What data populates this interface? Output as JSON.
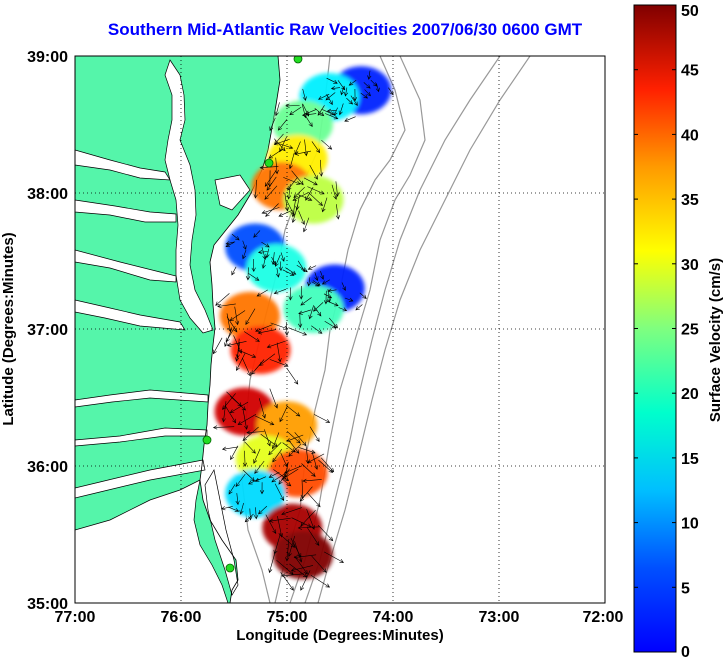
{
  "title": "Southern Mid-Atlantic Raw Velocities 2007/06/30 0600 GMT",
  "x_axis": {
    "label": "Longitude (Degrees:Minutes)",
    "ticks": [
      "77:00",
      "76:00",
      "75:00",
      "74:00",
      "73:00",
      "72:00"
    ]
  },
  "y_axis": {
    "label": "Latitude (Degrees:Minutes)",
    "ticks": [
      "39:00",
      "38:00",
      "37:00",
      "36:00",
      "35:00"
    ]
  },
  "colorbar": {
    "label": "Surface Velocity (cm/s)",
    "ticks": [
      "50",
      "45",
      "40",
      "35",
      "30",
      "25",
      "20",
      "15",
      "10",
      "5",
      "0"
    ],
    "range": [
      0,
      50
    ],
    "colormap": "jet"
  },
  "map": {
    "lon_range": [
      -77,
      -72
    ],
    "lat_range": [
      35,
      39
    ],
    "grid": true,
    "land_color": "#55f5aa",
    "water_color": "#ffffff",
    "station_color": "#22dd22"
  },
  "chart_data": {
    "type": "heatmap",
    "title": "Southern Mid-Atlantic Raw Velocities 2007/06/30 0600 GMT",
    "xlabel": "Longitude (Degrees:Minutes)",
    "ylabel": "Latitude (Degrees:Minutes)",
    "xlim": [
      -77,
      -72
    ],
    "ylim": [
      35,
      39
    ],
    "clim": [
      0,
      50
    ],
    "colorbar_label": "Surface Velocity (cm/s)",
    "regions": [
      {
        "lon": -74.3,
        "lat": 38.75,
        "speed": 8
      },
      {
        "lon": -74.6,
        "lat": 38.7,
        "speed": 18
      },
      {
        "lon": -74.85,
        "lat": 38.5,
        "speed": 24
      },
      {
        "lon": -74.9,
        "lat": 38.25,
        "speed": 32
      },
      {
        "lon": -75.05,
        "lat": 38.05,
        "speed": 38
      },
      {
        "lon": -74.75,
        "lat": 37.95,
        "speed": 28
      },
      {
        "lon": -75.3,
        "lat": 37.6,
        "speed": 10
      },
      {
        "lon": -75.1,
        "lat": 37.45,
        "speed": 20
      },
      {
        "lon": -74.55,
        "lat": 37.3,
        "speed": 8
      },
      {
        "lon": -74.75,
        "lat": 37.15,
        "speed": 22
      },
      {
        "lon": -75.35,
        "lat": 37.1,
        "speed": 38
      },
      {
        "lon": -75.25,
        "lat": 36.85,
        "speed": 42
      },
      {
        "lon": -75.4,
        "lat": 36.4,
        "speed": 46
      },
      {
        "lon": -75.0,
        "lat": 36.3,
        "speed": 36
      },
      {
        "lon": -75.2,
        "lat": 36.05,
        "speed": 30
      },
      {
        "lon": -74.9,
        "lat": 35.95,
        "speed": 40
      },
      {
        "lon": -75.3,
        "lat": 35.8,
        "speed": 17
      },
      {
        "lon": -74.95,
        "lat": 35.55,
        "speed": 48
      },
      {
        "lon": -74.85,
        "lat": 35.35,
        "speed": 50
      }
    ]
  }
}
